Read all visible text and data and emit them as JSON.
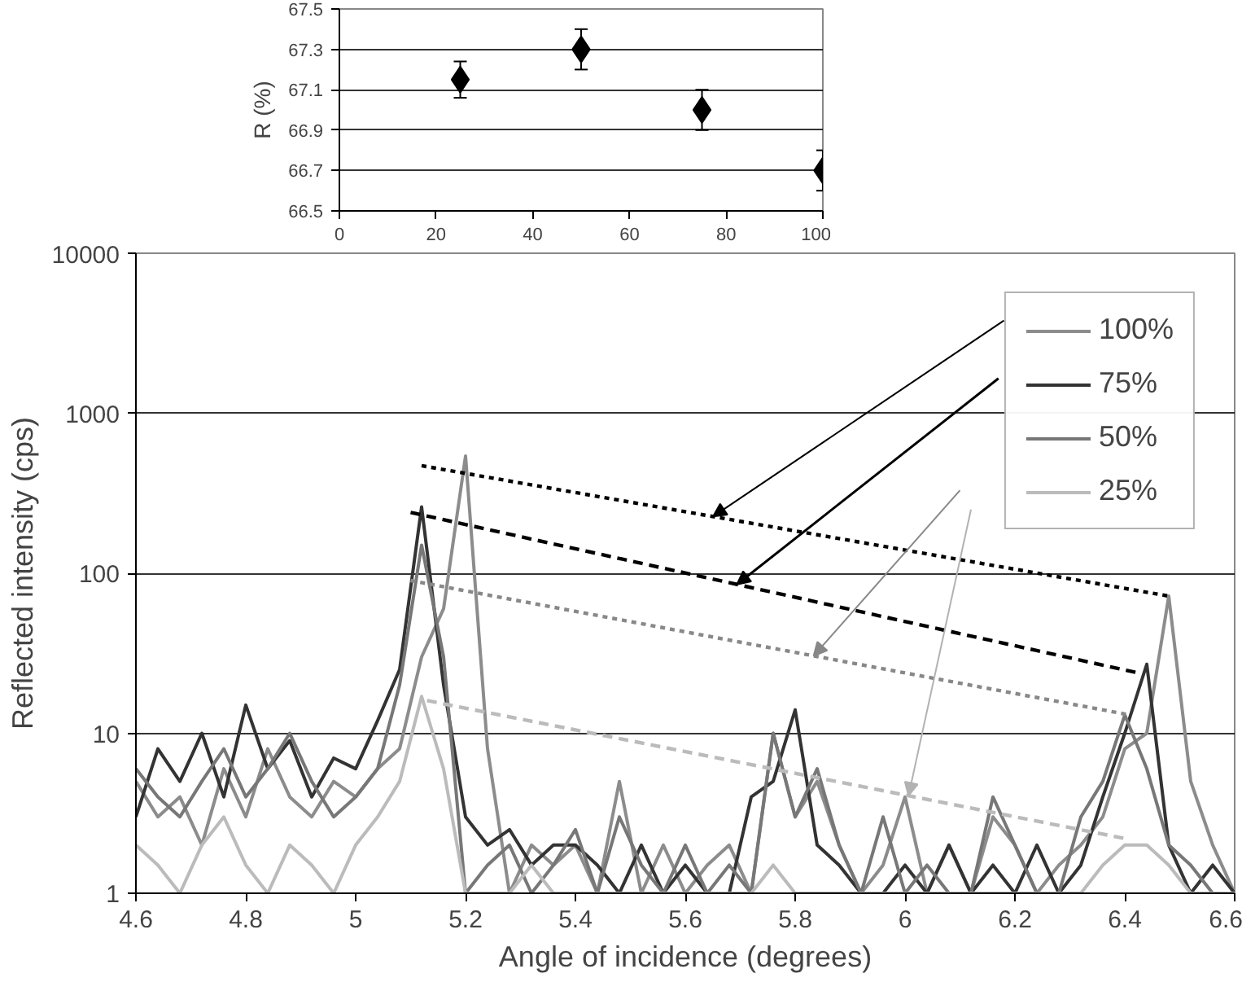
{
  "chart_data": [
    {
      "type": "scatter",
      "ylabel": "R (%)",
      "x": [
        25,
        50,
        75,
        100
      ],
      "values": [
        67.15,
        67.3,
        67.0,
        66.7
      ],
      "errors": [
        0.09,
        0.1,
        0.1,
        0.1
      ],
      "color": "#000000",
      "marker": "diamond",
      "xlim": [
        0,
        100
      ],
      "xticks": [
        0,
        20,
        40,
        60,
        80,
        100
      ],
      "ylim": [
        66.5,
        67.5
      ],
      "yticks": [
        66.5,
        66.7,
        66.9,
        67.1,
        67.3,
        67.5
      ],
      "grid": "y",
      "legend": false
    },
    {
      "type": "line",
      "xlabel": "Angle of incidence (degrees)",
      "ylabel": "Reflected intensity (cps)",
      "log": "y",
      "grid": "y",
      "legend": "top right",
      "xlim": [
        4.6,
        6.6
      ],
      "xticks": [
        4.6,
        4.8,
        5,
        5.2,
        5.4,
        5.6,
        5.8,
        6,
        6.2,
        6.4,
        6.6
      ],
      "ylim": [
        1,
        10000
      ],
      "yticks": [
        1,
        10,
        100,
        1000,
        10000
      ],
      "x": [
        4.6,
        4.64,
        4.68,
        4.72,
        4.76,
        4.8,
        4.84,
        4.88,
        4.92,
        4.96,
        5.0,
        5.04,
        5.08,
        5.12,
        5.16,
        5.2,
        5.24,
        5.28,
        5.32,
        5.36,
        5.4,
        5.44,
        5.48,
        5.52,
        5.56,
        5.6,
        5.64,
        5.68,
        5.72,
        5.76,
        5.8,
        5.84,
        5.88,
        5.92,
        5.96,
        6.0,
        6.04,
        6.08,
        6.12,
        6.16,
        6.2,
        6.24,
        6.28,
        6.32,
        6.36,
        6.4,
        6.44,
        6.48,
        6.52,
        6.56,
        6.6
      ],
      "series": [
        {
          "name": "100%",
          "color": "#8c8c8c",
          "values": [
            5,
            3,
            4,
            2,
            6,
            3,
            8,
            4,
            3,
            5,
            4,
            6,
            8,
            30,
            60,
            540,
            8,
            1,
            2,
            1.5,
            2,
            1,
            5,
            1,
            2,
            1,
            1.5,
            2,
            1,
            10,
            3,
            5,
            2,
            1,
            1.5,
            4,
            1,
            2,
            1,
            3,
            2,
            1,
            1.5,
            2,
            3,
            8,
            10,
            72,
            5,
            2,
            1
          ]
        },
        {
          "name": "75%",
          "color": "#333333",
          "values": [
            3,
            8,
            5,
            10,
            4,
            15,
            6,
            9,
            4,
            7,
            6,
            12,
            25,
            260,
            20,
            3,
            2,
            2.5,
            1.5,
            2,
            2,
            1.5,
            1,
            2,
            1,
            1.5,
            1,
            1,
            4,
            5,
            14,
            2,
            1.5,
            1,
            1,
            1.5,
            1,
            2,
            1,
            1.5,
            1,
            2,
            1,
            1.5,
            4,
            10,
            27,
            2,
            1,
            1.5,
            1
          ]
        },
        {
          "name": "50%",
          "color": "#777777",
          "values": [
            6,
            4,
            3,
            5,
            8,
            4,
            6,
            10,
            5,
            3,
            4,
            6,
            20,
            150,
            30,
            1,
            1.5,
            2,
            1,
            1.5,
            2.5,
            1,
            3,
            1.5,
            1,
            2,
            1,
            1.5,
            1,
            10,
            3,
            6,
            2,
            1,
            3,
            1,
            1.5,
            1,
            1,
            4,
            2,
            1,
            1,
            3,
            5,
            13,
            6,
            2,
            1.5,
            1,
            1
          ]
        },
        {
          "name": "25%",
          "color": "#bbbbbb",
          "values": [
            2,
            1.5,
            1,
            2,
            3,
            1.5,
            1,
            2,
            1.5,
            1,
            2,
            3,
            5,
            17,
            6,
            1,
            1,
            1,
            1.5,
            1,
            1,
            1,
            1,
            1,
            1,
            1,
            1,
            1,
            1,
            1.5,
            1,
            1,
            1,
            1,
            1,
            1,
            1,
            1,
            1,
            1,
            1,
            1,
            1,
            1,
            1.5,
            2,
            2,
            1.5,
            1,
            1,
            1
          ]
        },
        {
          "type": "line",
          "color": "#000000",
          "line_style": "dotted",
          "x": [
            5.12,
            6.48
          ],
          "values": [
            470,
            72
          ]
        },
        {
          "type": "line",
          "color": "#000000",
          "line_style": "dashed",
          "x": [
            5.1,
            6.42
          ],
          "values": [
            240,
            24
          ]
        },
        {
          "type": "line",
          "color": "#888888",
          "line_style": "dotted",
          "x": [
            5.1,
            6.41
          ],
          "values": [
            90,
            13
          ]
        },
        {
          "type": "line",
          "color": "#bbbbbb",
          "line_style": "dashed",
          "x": [
            5.13,
            6.4
          ],
          "values": [
            16,
            2.2
          ]
        }
      ]
    }
  ]
}
